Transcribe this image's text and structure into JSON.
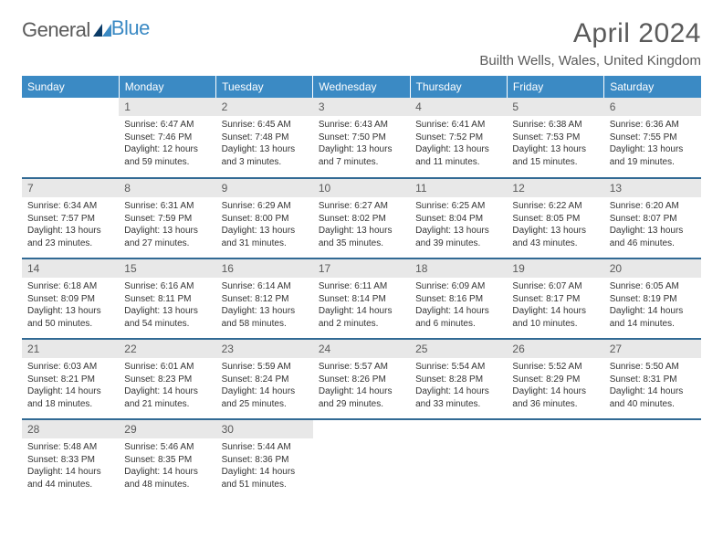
{
  "logo": {
    "part1": "General",
    "part2": "Blue"
  },
  "title": "April 2024",
  "location": "Builth Wells, Wales, United Kingdom",
  "colors": {
    "header_bg": "#3b8ac4",
    "header_text": "#ffffff",
    "daynum_bg": "#e8e8e8",
    "border": "#326a94",
    "text": "#333333",
    "title_text": "#5a5a5a"
  },
  "weekdays": [
    "Sunday",
    "Monday",
    "Tuesday",
    "Wednesday",
    "Thursday",
    "Friday",
    "Saturday"
  ],
  "weeks": [
    [
      null,
      {
        "n": "1",
        "rise": "6:47 AM",
        "set": "7:46 PM",
        "day": "12 hours and 59 minutes."
      },
      {
        "n": "2",
        "rise": "6:45 AM",
        "set": "7:48 PM",
        "day": "13 hours and 3 minutes."
      },
      {
        "n": "3",
        "rise": "6:43 AM",
        "set": "7:50 PM",
        "day": "13 hours and 7 minutes."
      },
      {
        "n": "4",
        "rise": "6:41 AM",
        "set": "7:52 PM",
        "day": "13 hours and 11 minutes."
      },
      {
        "n": "5",
        "rise": "6:38 AM",
        "set": "7:53 PM",
        "day": "13 hours and 15 minutes."
      },
      {
        "n": "6",
        "rise": "6:36 AM",
        "set": "7:55 PM",
        "day": "13 hours and 19 minutes."
      }
    ],
    [
      {
        "n": "7",
        "rise": "6:34 AM",
        "set": "7:57 PM",
        "day": "13 hours and 23 minutes."
      },
      {
        "n": "8",
        "rise": "6:31 AM",
        "set": "7:59 PM",
        "day": "13 hours and 27 minutes."
      },
      {
        "n": "9",
        "rise": "6:29 AM",
        "set": "8:00 PM",
        "day": "13 hours and 31 minutes."
      },
      {
        "n": "10",
        "rise": "6:27 AM",
        "set": "8:02 PM",
        "day": "13 hours and 35 minutes."
      },
      {
        "n": "11",
        "rise": "6:25 AM",
        "set": "8:04 PM",
        "day": "13 hours and 39 minutes."
      },
      {
        "n": "12",
        "rise": "6:22 AM",
        "set": "8:05 PM",
        "day": "13 hours and 43 minutes."
      },
      {
        "n": "13",
        "rise": "6:20 AM",
        "set": "8:07 PM",
        "day": "13 hours and 46 minutes."
      }
    ],
    [
      {
        "n": "14",
        "rise": "6:18 AM",
        "set": "8:09 PM",
        "day": "13 hours and 50 minutes."
      },
      {
        "n": "15",
        "rise": "6:16 AM",
        "set": "8:11 PM",
        "day": "13 hours and 54 minutes."
      },
      {
        "n": "16",
        "rise": "6:14 AM",
        "set": "8:12 PM",
        "day": "13 hours and 58 minutes."
      },
      {
        "n": "17",
        "rise": "6:11 AM",
        "set": "8:14 PM",
        "day": "14 hours and 2 minutes."
      },
      {
        "n": "18",
        "rise": "6:09 AM",
        "set": "8:16 PM",
        "day": "14 hours and 6 minutes."
      },
      {
        "n": "19",
        "rise": "6:07 AM",
        "set": "8:17 PM",
        "day": "14 hours and 10 minutes."
      },
      {
        "n": "20",
        "rise": "6:05 AM",
        "set": "8:19 PM",
        "day": "14 hours and 14 minutes."
      }
    ],
    [
      {
        "n": "21",
        "rise": "6:03 AM",
        "set": "8:21 PM",
        "day": "14 hours and 18 minutes."
      },
      {
        "n": "22",
        "rise": "6:01 AM",
        "set": "8:23 PM",
        "day": "14 hours and 21 minutes."
      },
      {
        "n": "23",
        "rise": "5:59 AM",
        "set": "8:24 PM",
        "day": "14 hours and 25 minutes."
      },
      {
        "n": "24",
        "rise": "5:57 AM",
        "set": "8:26 PM",
        "day": "14 hours and 29 minutes."
      },
      {
        "n": "25",
        "rise": "5:54 AM",
        "set": "8:28 PM",
        "day": "14 hours and 33 minutes."
      },
      {
        "n": "26",
        "rise": "5:52 AM",
        "set": "8:29 PM",
        "day": "14 hours and 36 minutes."
      },
      {
        "n": "27",
        "rise": "5:50 AM",
        "set": "8:31 PM",
        "day": "14 hours and 40 minutes."
      }
    ],
    [
      {
        "n": "28",
        "rise": "5:48 AM",
        "set": "8:33 PM",
        "day": "14 hours and 44 minutes."
      },
      {
        "n": "29",
        "rise": "5:46 AM",
        "set": "8:35 PM",
        "day": "14 hours and 48 minutes."
      },
      {
        "n": "30",
        "rise": "5:44 AM",
        "set": "8:36 PM",
        "day": "14 hours and 51 minutes."
      },
      null,
      null,
      null,
      null
    ]
  ],
  "labels": {
    "sunrise": "Sunrise:",
    "sunset": "Sunset:",
    "daylight": "Daylight:"
  }
}
